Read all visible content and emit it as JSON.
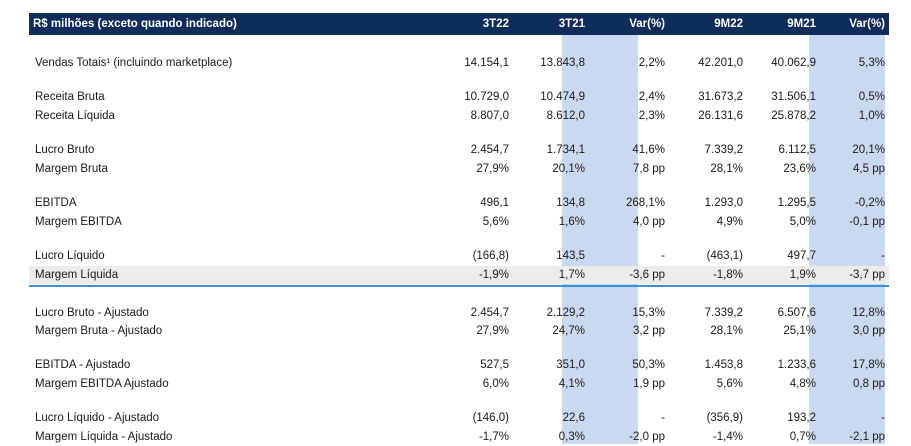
{
  "header": {
    "label": "R$ milhões (exceto quando indicado)",
    "cols": [
      "3T22",
      "3T21",
      "Var(%)",
      "9M22",
      "9M21",
      "Var(%)"
    ]
  },
  "rows": [
    {
      "label": "Vendas Totais¹ (incluindo marketplace)",
      "v": [
        "14.154,1",
        "13.843,8",
        "2,2%",
        "42.201,0",
        "40.062,9",
        "5,3%"
      ]
    },
    {
      "label": "Receita Bruta",
      "v": [
        "10.729,0",
        "10.474,9",
        "2,4%",
        "31.673,2",
        "31.506,1",
        "0,5%"
      ]
    },
    {
      "label": "Receita Líquida",
      "v": [
        "8.807,0",
        "8.612,0",
        "2,3%",
        "26.131,6",
        "25.878,2",
        "1,0%"
      ]
    },
    {
      "label": "Lucro Bruto",
      "v": [
        "2.454,7",
        "1.734,1",
        "41,6%",
        "7.339,2",
        "6.112,5",
        "20,1%"
      ]
    },
    {
      "label": "Margem Bruta",
      "v": [
        "27,9%",
        "20,1%",
        "7,8 pp",
        "28,1%",
        "23,6%",
        "4,5 pp"
      ]
    },
    {
      "label": "EBITDA",
      "v": [
        "496,1",
        "134,8",
        "268,1%",
        "1.293,0",
        "1.295,5",
        "-0,2%"
      ]
    },
    {
      "label": "Margem EBITDA",
      "v": [
        "5,6%",
        "1,6%",
        "4,0 pp",
        "4,9%",
        "5,0%",
        "-0,1 pp"
      ]
    },
    {
      "label": "Lucro Líquido",
      "v": [
        "(166,8)",
        "143,5",
        "-",
        "(463,1)",
        "497,7",
        "-"
      ]
    },
    {
      "label": "Margem Líquida",
      "v": [
        "-1,9%",
        "1,7%",
        "-3,6 pp",
        "-1,8%",
        "1,9%",
        "-3,7 pp"
      ]
    },
    {
      "label": "Lucro Bruto - Ajustado",
      "v": [
        "2.454,7",
        "2.129,2",
        "15,3%",
        "7.339,2",
        "6.507,6",
        "12,8%"
      ]
    },
    {
      "label": "Margem Bruta - Ajustado",
      "v": [
        "27,9%",
        "24,7%",
        "3,2 pp",
        "28,1%",
        "25,1%",
        "3,0 pp"
      ]
    },
    {
      "label": "EBITDA - Ajustado",
      "v": [
        "527,5",
        "351,0",
        "50,3%",
        "1.453,8",
        "1.233,6",
        "17,8%"
      ]
    },
    {
      "label": "Margem EBITDA Ajustado",
      "v": [
        "6,0%",
        "4,1%",
        "1,9 pp",
        "5,6%",
        "4,8%",
        "0,8 pp"
      ]
    },
    {
      "label": "Lucro Líquido - Ajustado",
      "v": [
        "(146,0)",
        "22,6",
        "-",
        "(356,9)",
        "193,2",
        "-"
      ]
    },
    {
      "label": "Margem Líquida - Ajustado",
      "v": [
        "-1,7%",
        "0,3%",
        "-2,0 pp",
        "-1,4%",
        "0,7%",
        "-2,1 pp"
      ]
    }
  ],
  "colors": {
    "header_bg": "#0f2d5a",
    "var_col_bg": "#c9d9ef",
    "separator": "#3a8fd6",
    "shaded_row": "#ececec"
  }
}
